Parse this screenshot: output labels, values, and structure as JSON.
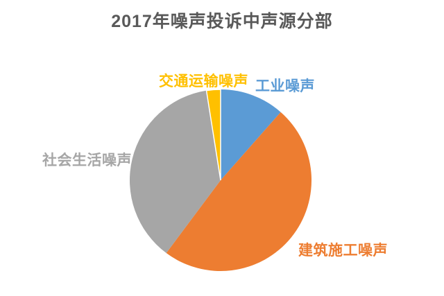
{
  "page": {
    "background_color": "#FFFFFF"
  },
  "title": {
    "text": "2017年噪声投诉中声源分部",
    "color": "#595959"
  },
  "chart_data": {
    "type": "pie",
    "title": "2017年噪声投诉中声源分部",
    "direction": "clockwise",
    "start_angle_deg": 0,
    "unit": "percent_of_total",
    "legend_position": "labels-around-pie",
    "slices": [
      {
        "id": "industrial-noise",
        "label": "工业噪声",
        "value": 11.5,
        "color": "#5B9BD5"
      },
      {
        "id": "construction-noise",
        "label": "建筑施工噪声",
        "value": 48.7,
        "color": "#ED7D31"
      },
      {
        "id": "social-life-noise",
        "label": "社会生活噪声",
        "value": 37.3,
        "color": "#A6A6A6"
      },
      {
        "id": "traffic-noise",
        "label": "交通运输噪声",
        "value": 2.5,
        "color": "#FFC000",
        "white_border": true
      }
    ]
  }
}
